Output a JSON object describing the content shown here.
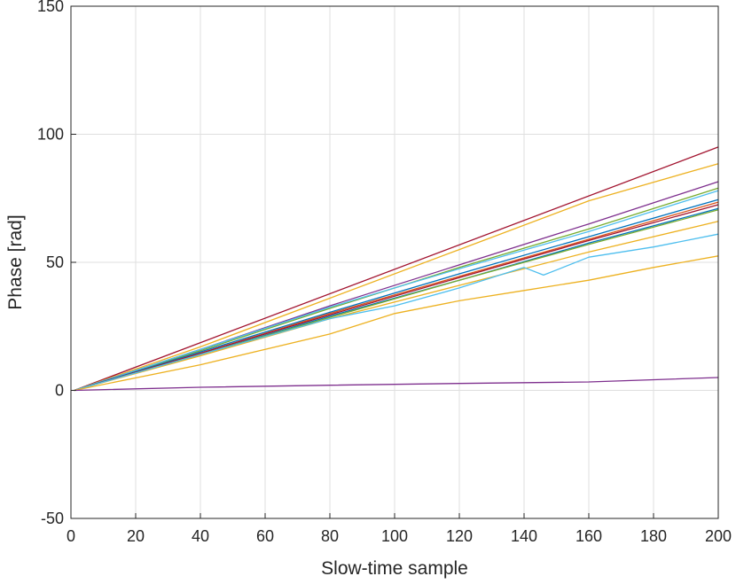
{
  "chart_data": {
    "type": "line",
    "title": "",
    "xlabel": "Slow-time sample",
    "ylabel": "Phase [rad]",
    "xlim": [
      0,
      200
    ],
    "ylim": [
      -50,
      150
    ],
    "xticks": [
      0,
      20,
      40,
      60,
      80,
      100,
      120,
      140,
      160,
      180,
      200
    ],
    "yticks": [
      -50,
      0,
      50,
      100,
      150
    ],
    "xtick_labels": [
      "0",
      "20",
      "40",
      "60",
      "80",
      "100",
      "120",
      "140",
      "160",
      "180",
      "200"
    ],
    "ytick_labels": [
      "-50",
      "0",
      "50",
      "100",
      "150"
    ],
    "grid": true,
    "legend": false,
    "series": [
      {
        "color": "#A2142F",
        "x": [
          1,
          200
        ],
        "y": [
          0,
          95
        ]
      },
      {
        "color": "#EDB120",
        "x": [
          1,
          40,
          80,
          120,
          160,
          200
        ],
        "y": [
          0,
          17,
          36,
          55,
          74,
          88.5
        ]
      },
      {
        "color": "#7E2F8E",
        "x": [
          1,
          40,
          80,
          120,
          160,
          200
        ],
        "y": [
          0,
          16,
          33,
          49,
          65,
          81.5
        ]
      },
      {
        "color": "#77AC30",
        "x": [
          1,
          40,
          80,
          120,
          160,
          200
        ],
        "y": [
          0,
          15.5,
          32,
          48,
          63,
          79
        ]
      },
      {
        "color": "#4DBEEE",
        "x": [
          1,
          40,
          80,
          120,
          160,
          200
        ],
        "y": [
          0,
          16,
          32.5,
          47.5,
          62,
          78
        ]
      },
      {
        "color": "#0072BD",
        "x": [
          1,
          40,
          80,
          120,
          160,
          200
        ],
        "y": [
          0,
          15,
          30.5,
          45.5,
          60,
          74.5
        ]
      },
      {
        "color": "#D95319",
        "x": [
          1,
          40,
          80,
          120,
          160,
          200
        ],
        "y": [
          0,
          14.5,
          30,
          44.5,
          59,
          73.5
        ]
      },
      {
        "color": "#A2142F",
        "x": [
          1,
          40,
          80,
          120,
          160,
          200
        ],
        "y": [
          0,
          14.5,
          29.5,
          44,
          58.5,
          72.5
        ]
      },
      {
        "color": "#0072BD",
        "x": [
          1,
          40,
          80,
          120,
          160,
          200
        ],
        "y": [
          0,
          14,
          29,
          43,
          57.5,
          71
        ]
      },
      {
        "color": "#77AC30",
        "x": [
          1,
          40,
          80,
          120,
          160,
          200
        ],
        "y": [
          0,
          14,
          28.5,
          43,
          57,
          70.5
        ]
      },
      {
        "color": "#EDB120",
        "x": [
          1,
          40,
          80,
          120,
          160,
          200
        ],
        "y": [
          0,
          13.5,
          28,
          41,
          54,
          66
        ]
      },
      {
        "color": "#4DBEEE",
        "x": [
          1,
          40,
          80,
          100,
          120,
          140,
          146,
          150,
          160,
          180,
          200
        ],
        "y": [
          0,
          14,
          28,
          33,
          40,
          48,
          45,
          47,
          52,
          56,
          61
        ]
      },
      {
        "color": "#EDB120",
        "x": [
          1,
          40,
          80,
          100,
          120,
          140,
          160,
          180,
          200
        ],
        "y": [
          0,
          10,
          22,
          30,
          35,
          39,
          43,
          48,
          52.5
        ]
      },
      {
        "color": "#7E2F8E",
        "x": [
          1,
          40,
          80,
          120,
          160,
          200
        ],
        "y": [
          0,
          1.2,
          2,
          2.7,
          3.3,
          5
        ]
      }
    ]
  }
}
